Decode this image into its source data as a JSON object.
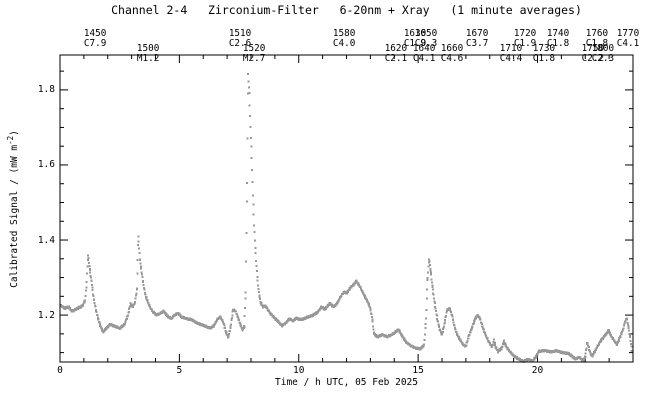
{
  "title": "Channel 2-4   Zirconium-Filter   6-20nm + Xray   (1 minute averages)",
  "axes": {
    "xlabel": "Time / h UTC, 05 Feb 2025",
    "ylabel_prefix": "Calibrated Signal / (mW m",
    "ylabel_sup": "-2",
    "ylabel_suffix": ")"
  },
  "chart_data": {
    "type": "scatter",
    "title": "Channel 2-4   Zirconium-Filter   6-20nm + Xray   (1 minute averages)",
    "xlabel": "Time / h UTC, 05 Feb 2025",
    "ylabel": "Calibrated Signal / (mW m-2)",
    "xlim": [
      0,
      24
    ],
    "ylim": [
      1.075,
      1.893
    ],
    "x_major_ticks": [
      0,
      5,
      10,
      15,
      20
    ],
    "x_minor_step": 1,
    "y_major_ticks": [
      1.2,
      1.4,
      1.6,
      1.8
    ],
    "y_minor_step": 0.05,
    "grid": false,
    "legend": "none",
    "cadence_hours": 0.0166667,
    "marker": "2x2px square dots, 1-minute averages",
    "marker_color": "#989898",
    "series_keypoints": [
      [
        0.05,
        1.225
      ],
      [
        0.2,
        1.218
      ],
      [
        0.35,
        1.222
      ],
      [
        0.5,
        1.21
      ],
      [
        0.65,
        1.215
      ],
      [
        0.8,
        1.22
      ],
      [
        0.95,
        1.225
      ],
      [
        1.05,
        1.24
      ],
      [
        1.12,
        1.29
      ],
      [
        1.18,
        1.36
      ],
      [
        1.25,
        1.32
      ],
      [
        1.32,
        1.29
      ],
      [
        1.4,
        1.25
      ],
      [
        1.5,
        1.215
      ],
      [
        1.6,
        1.19
      ],
      [
        1.7,
        1.17
      ],
      [
        1.8,
        1.155
      ],
      [
        1.95,
        1.165
      ],
      [
        2.1,
        1.175
      ],
      [
        2.3,
        1.17
      ],
      [
        2.5,
        1.165
      ],
      [
        2.7,
        1.175
      ],
      [
        2.85,
        1.2
      ],
      [
        2.95,
        1.23
      ],
      [
        3.05,
        1.222
      ],
      [
        3.15,
        1.235
      ],
      [
        3.22,
        1.27
      ],
      [
        3.28,
        1.41
      ],
      [
        3.35,
        1.345
      ],
      [
        3.45,
        1.3
      ],
      [
        3.55,
        1.26
      ],
      [
        3.65,
        1.24
      ],
      [
        3.78,
        1.22
      ],
      [
        3.9,
        1.208
      ],
      [
        4.05,
        1.2
      ],
      [
        4.2,
        1.205
      ],
      [
        4.35,
        1.21
      ],
      [
        4.5,
        1.198
      ],
      [
        4.65,
        1.19
      ],
      [
        4.8,
        1.2
      ],
      [
        4.95,
        1.205
      ],
      [
        5.1,
        1.195
      ],
      [
        5.3,
        1.19
      ],
      [
        5.5,
        1.188
      ],
      [
        5.7,
        1.18
      ],
      [
        5.9,
        1.175
      ],
      [
        6.1,
        1.17
      ],
      [
        6.3,
        1.165
      ],
      [
        6.45,
        1.172
      ],
      [
        6.6,
        1.19
      ],
      [
        6.72,
        1.195
      ],
      [
        6.85,
        1.18
      ],
      [
        6.95,
        1.155
      ],
      [
        7.05,
        1.14
      ],
      [
        7.15,
        1.17
      ],
      [
        7.25,
        1.215
      ],
      [
        7.35,
        1.21
      ],
      [
        7.45,
        1.195
      ],
      [
        7.55,
        1.175
      ],
      [
        7.65,
        1.16
      ],
      [
        7.72,
        1.17
      ],
      [
        7.78,
        1.26
      ],
      [
        7.84,
        1.55
      ],
      [
        7.88,
        1.84
      ],
      [
        7.93,
        1.79
      ],
      [
        7.98,
        1.7
      ],
      [
        8.03,
        1.62
      ],
      [
        8.08,
        1.52
      ],
      [
        8.13,
        1.44
      ],
      [
        8.18,
        1.38
      ],
      [
        8.23,
        1.33
      ],
      [
        8.28,
        1.29
      ],
      [
        8.33,
        1.26
      ],
      [
        8.4,
        1.235
      ],
      [
        8.5,
        1.222
      ],
      [
        8.6,
        1.225
      ],
      [
        8.7,
        1.215
      ],
      [
        8.8,
        1.205
      ],
      [
        8.95,
        1.195
      ],
      [
        9.1,
        1.185
      ],
      [
        9.3,
        1.172
      ],
      [
        9.45,
        1.178
      ],
      [
        9.6,
        1.19
      ],
      [
        9.75,
        1.185
      ],
      [
        9.9,
        1.192
      ],
      [
        10.05,
        1.188
      ],
      [
        10.2,
        1.19
      ],
      [
        10.4,
        1.195
      ],
      [
        10.6,
        1.2
      ],
      [
        10.8,
        1.208
      ],
      [
        10.95,
        1.222
      ],
      [
        11.1,
        1.215
      ],
      [
        11.3,
        1.232
      ],
      [
        11.45,
        1.222
      ],
      [
        11.6,
        1.23
      ],
      [
        11.75,
        1.248
      ],
      [
        11.9,
        1.262
      ],
      [
        12.0,
        1.258
      ],
      [
        12.15,
        1.272
      ],
      [
        12.3,
        1.282
      ],
      [
        12.42,
        1.29
      ],
      [
        12.55,
        1.278
      ],
      [
        12.7,
        1.258
      ],
      [
        12.85,
        1.24
      ],
      [
        12.98,
        1.222
      ],
      [
        13.08,
        1.19
      ],
      [
        13.15,
        1.15
      ],
      [
        13.3,
        1.142
      ],
      [
        13.5,
        1.148
      ],
      [
        13.7,
        1.142
      ],
      [
        13.9,
        1.148
      ],
      [
        14.05,
        1.155
      ],
      [
        14.18,
        1.162
      ],
      [
        14.32,
        1.145
      ],
      [
        14.5,
        1.128
      ],
      [
        14.7,
        1.118
      ],
      [
        14.9,
        1.112
      ],
      [
        15.1,
        1.11
      ],
      [
        15.25,
        1.12
      ],
      [
        15.33,
        1.19
      ],
      [
        15.4,
        1.3
      ],
      [
        15.46,
        1.35
      ],
      [
        15.53,
        1.315
      ],
      [
        15.6,
        1.275
      ],
      [
        15.7,
        1.23
      ],
      [
        15.8,
        1.19
      ],
      [
        15.9,
        1.163
      ],
      [
        16.0,
        1.148
      ],
      [
        16.1,
        1.175
      ],
      [
        16.2,
        1.212
      ],
      [
        16.32,
        1.218
      ],
      [
        16.42,
        1.2
      ],
      [
        16.52,
        1.17
      ],
      [
        16.62,
        1.15
      ],
      [
        16.75,
        1.135
      ],
      [
        16.9,
        1.12
      ],
      [
        17.0,
        1.117
      ],
      [
        17.1,
        1.14
      ],
      [
        17.25,
        1.165
      ],
      [
        17.4,
        1.192
      ],
      [
        17.5,
        1.2
      ],
      [
        17.6,
        1.19
      ],
      [
        17.7,
        1.168
      ],
      [
        17.82,
        1.148
      ],
      [
        17.95,
        1.13
      ],
      [
        18.1,
        1.115
      ],
      [
        18.18,
        1.133
      ],
      [
        18.25,
        1.115
      ],
      [
        18.35,
        1.103
      ],
      [
        18.5,
        1.112
      ],
      [
        18.6,
        1.13
      ],
      [
        18.7,
        1.115
      ],
      [
        18.85,
        1.102
      ],
      [
        19.0,
        1.092
      ],
      [
        19.2,
        1.083
      ],
      [
        19.4,
        1.077
      ],
      [
        19.6,
        1.082
      ],
      [
        19.8,
        1.078
      ],
      [
        19.95,
        1.09
      ],
      [
        20.05,
        1.103
      ],
      [
        20.3,
        1.106
      ],
      [
        20.55,
        1.102
      ],
      [
        20.8,
        1.105
      ],
      [
        21.05,
        1.1
      ],
      [
        21.3,
        1.098
      ],
      [
        21.45,
        1.09
      ],
      [
        21.6,
        1.083
      ],
      [
        21.75,
        1.088
      ],
      [
        21.9,
        1.078
      ],
      [
        22.0,
        1.09
      ],
      [
        22.08,
        1.128
      ],
      [
        22.18,
        1.105
      ],
      [
        22.28,
        1.09
      ],
      [
        22.4,
        1.103
      ],
      [
        22.5,
        1.115
      ],
      [
        22.62,
        1.128
      ],
      [
        22.75,
        1.14
      ],
      [
        22.88,
        1.15
      ],
      [
        22.98,
        1.16
      ],
      [
        23.08,
        1.145
      ],
      [
        23.2,
        1.133
      ],
      [
        23.32,
        1.122
      ],
      [
        23.45,
        1.14
      ],
      [
        23.58,
        1.162
      ],
      [
        23.68,
        1.185
      ],
      [
        23.74,
        1.192
      ],
      [
        23.82,
        1.165
      ],
      [
        23.88,
        1.14
      ],
      [
        23.95,
        1.105
      ]
    ],
    "flare_events": [
      {
        "event": "1450",
        "class": "C7.9",
        "row": 1,
        "t": 1.47
      },
      {
        "event": "1500",
        "class": "M1.2",
        "row": 2,
        "t": 3.69
      },
      {
        "event": "1510",
        "class": "C2.6",
        "row": 1,
        "t": 7.54
      },
      {
        "event": "1520",
        "class": "M2.7",
        "row": 2,
        "t": 8.13
      },
      {
        "event": "1580",
        "class": "C4.0",
        "row": 1,
        "t": 11.9
      },
      {
        "event": "1620",
        "class": "C2.1",
        "row": 2,
        "t": 14.07
      },
      {
        "event": "1630",
        "class": "C1.9",
        "row": 1,
        "t": 14.87
      },
      {
        "event": "1640",
        "class": "C4.1",
        "row": 2,
        "t": 15.25
      },
      {
        "event": "1650",
        "class": "C9.3",
        "row": 1,
        "t": 15.33
      },
      {
        "event": "1660",
        "class": "C4.6",
        "row": 2,
        "t": 16.42
      },
      {
        "event": "1670",
        "class": "C3.7",
        "row": 1,
        "t": 17.47
      },
      {
        "event": "1710",
        "class": "C4.4",
        "row": 2,
        "t": 18.89
      },
      {
        "event": "1720",
        "class": "C1.9",
        "row": 1,
        "t": 19.48
      },
      {
        "event": "1730",
        "class": "C1.8",
        "row": 2,
        "t": 20.27
      },
      {
        "event": "1740",
        "class": "C1.8",
        "row": 1,
        "t": 20.86
      },
      {
        "event": "1750",
        "class": "C2.2",
        "row": 2,
        "t": 22.32
      },
      {
        "event": "1760",
        "class": "C1.8",
        "row": 1,
        "t": 22.49
      },
      {
        "event": "1770",
        "class": "C4.1",
        "row": 1,
        "t": 23.79
      },
      {
        "event": "1800",
        "class": "C2.3",
        "row": 2,
        "t": 22.74
      }
    ]
  }
}
